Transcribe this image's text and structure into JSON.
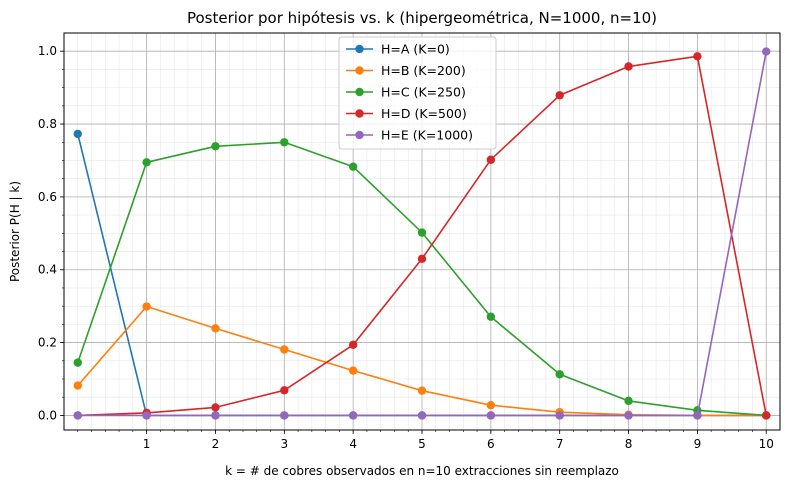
{
  "chart_data": {
    "type": "line",
    "title": "Posterior por hipótesis vs. k (hipergeométrica, N=1000, n=10)",
    "xlabel": "k = # de cobres observados en n=10 extracciones sin reemplazo",
    "ylabel": "Posterior  P(H | k)",
    "xlim": [
      -0.2,
      10.2
    ],
    "ylim": [
      -0.04,
      1.05
    ],
    "x_ticks": [
      1,
      2,
      3,
      4,
      5,
      6,
      7,
      8,
      9,
      10
    ],
    "y_ticks": [
      0.0,
      0.2,
      0.4,
      0.6,
      0.8,
      1.0
    ],
    "grid": true,
    "minor_grid": true,
    "legend_position": "top-center",
    "x": [
      0,
      1,
      2,
      3,
      4,
      5,
      6,
      7,
      8,
      9,
      10
    ],
    "series": [
      {
        "name": "H=A (K=0)",
        "color": "#1f77b4",
        "values": [
          0.773,
          0.0,
          0.0,
          0.0,
          0.0,
          0.0,
          0.0,
          0.0,
          0.0,
          0.0,
          0.0
        ]
      },
      {
        "name": "H=B (K=200)",
        "color": "#ff7f0e",
        "values": [
          0.082,
          0.299,
          0.239,
          0.181,
          0.123,
          0.068,
          0.028,
          0.009,
          0.002,
          0.0,
          0.0
        ]
      },
      {
        "name": "H=C (K=250)",
        "color": "#2ca02c",
        "values": [
          0.145,
          0.695,
          0.739,
          0.75,
          0.683,
          0.502,
          0.271,
          0.113,
          0.04,
          0.014,
          0.0
        ]
      },
      {
        "name": "H=D (K=500)",
        "color": "#d62728",
        "values": [
          0.0,
          0.007,
          0.022,
          0.069,
          0.194,
          0.43,
          0.702,
          0.879,
          0.958,
          0.986,
          0.0
        ]
      },
      {
        "name": "H=E (K=1000)",
        "color": "#9467bd",
        "values": [
          0.0,
          0.0,
          0.0,
          0.0,
          0.0,
          0.0,
          0.0,
          0.0,
          0.0,
          0.0,
          0.999
        ]
      }
    ]
  }
}
